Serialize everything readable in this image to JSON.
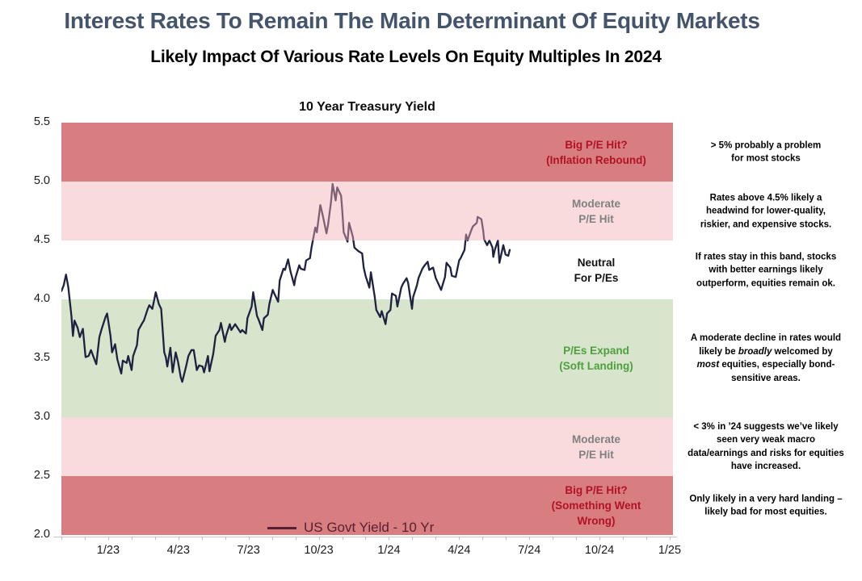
{
  "page": {
    "title": "Interest Rates To Remain The Main Determinant Of Equity Markets",
    "subtitle": "Likely Impact Of Various Rate Levels On Equity Multiples In 2024"
  },
  "chart_data": {
    "type": "line",
    "title": "10 Year Treasury Yield",
    "legend": "US Govt Yield - 10 Yr",
    "line_color": "#1e2240",
    "legend_color": "#571f31",
    "axis_color": "#bdbdbd",
    "ylim": [
      2.0,
      5.5
    ],
    "y_ticks": [
      5.5,
      5.0,
      4.5,
      4.0,
      3.5,
      3.0,
      2.5,
      2.0
    ],
    "x_ticks": [
      {
        "label": "1/23",
        "month": 2
      },
      {
        "label": "4/23",
        "month": 5
      },
      {
        "label": "7/23",
        "month": 8
      },
      {
        "label": "10/23",
        "month": 11
      },
      {
        "label": "1/24",
        "month": 14
      },
      {
        "label": "4/24",
        "month": 17
      },
      {
        "label": "7/24",
        "month": 20
      },
      {
        "label": "10/24",
        "month": 23
      },
      {
        "label": "1/25",
        "month": 26
      }
    ],
    "x_minor_tick_months": 26,
    "grid": false,
    "legend_position": "bottom-inside",
    "bands": [
      {
        "from": 5.0,
        "to": 5.5,
        "fill": "#d87e81",
        "layer": "under",
        "label": "Big P/E Hit?\n(Inflation Rebound)",
        "label_color": "#b01325"
      },
      {
        "from": 4.5,
        "to": 5.0,
        "fill": "rgba(243,176,179,0.45)",
        "layer": "over",
        "label": "Moderate\nP/E Hit",
        "label_color": "#808080"
      },
      {
        "from": 4.0,
        "to": 4.5,
        "fill": "#ffffff",
        "layer": "under",
        "label": "Neutral\nFor P/Es",
        "label_color": "#111111"
      },
      {
        "from": 3.0,
        "to": 4.0,
        "fill": "#d8e5cd",
        "layer": "under",
        "label": "P/Es Expand\n(Soft Landing)",
        "label_color": "#4f9f3f"
      },
      {
        "from": 2.5,
        "to": 3.0,
        "fill": "rgba(243,176,179,0.45)",
        "layer": "over",
        "label": "Moderate\nP/E Hit",
        "label_color": "#808080"
      },
      {
        "from": 2.0,
        "to": 2.5,
        "fill": "#d87e81",
        "layer": "under",
        "label": "Big P/E Hit?\n(Something Went\nWrong)",
        "label_color": "#b01325"
      }
    ],
    "annotations": [
      {
        "center_value": 5.25,
        "text": "> 5% probably a problem\nfor most stocks"
      },
      {
        "center_value": 4.75,
        "text": "Rates above 4.5% likely a\nheadwind for lower-quality,\nriskier, and expensive stocks."
      },
      {
        "center_value": 4.25,
        "text": "If rates stay in this band, stocks\nwith better earnings likely\noutperform, equities remain ok."
      },
      {
        "center_value": 3.5,
        "text": "A moderate decline in rates would\nlikely be *broadly* welcomed by\n*most* equities, especially bond-\nsensitive areas."
      },
      {
        "center_value": 2.75,
        "text": "< 3% in ’24 suggests we’ve likely\nseen very weak macro\ndata/earnings and risks for equities\nhave increased."
      },
      {
        "center_value": 2.25,
        "text": "Only likely in a very hard landing –\nlikely bad for most equities."
      }
    ],
    "series": [
      {
        "name": "US Govt Yield - 10 Yr",
        "points": [
          [
            "2022-11-01",
            4.07
          ],
          [
            "2022-11-04",
            4.12
          ],
          [
            "2022-11-07",
            4.21
          ],
          [
            "2022-11-09",
            4.14
          ],
          [
            "2022-11-10",
            4.1
          ],
          [
            "2022-11-14",
            3.86
          ],
          [
            "2022-11-16",
            3.69
          ],
          [
            "2022-11-18",
            3.82
          ],
          [
            "2022-11-22",
            3.76
          ],
          [
            "2022-11-25",
            3.68
          ],
          [
            "2022-11-29",
            3.75
          ],
          [
            "2022-12-02",
            3.51
          ],
          [
            "2022-12-06",
            3.52
          ],
          [
            "2022-12-09",
            3.57
          ],
          [
            "2022-12-13",
            3.5
          ],
          [
            "2022-12-16",
            3.45
          ],
          [
            "2022-12-20",
            3.68
          ],
          [
            "2022-12-23",
            3.75
          ],
          [
            "2022-12-28",
            3.85
          ],
          [
            "2022-12-30",
            3.88
          ],
          [
            "2023-01-04",
            3.69
          ],
          [
            "2023-01-06",
            3.55
          ],
          [
            "2023-01-10",
            3.62
          ],
          [
            "2023-01-13",
            3.49
          ],
          [
            "2023-01-18",
            3.37
          ],
          [
            "2023-01-20",
            3.48
          ],
          [
            "2023-01-25",
            3.46
          ],
          [
            "2023-01-27",
            3.52
          ],
          [
            "2023-02-01",
            3.4
          ],
          [
            "2023-02-03",
            3.52
          ],
          [
            "2023-02-08",
            3.61
          ],
          [
            "2023-02-10",
            3.74
          ],
          [
            "2023-02-15",
            3.8
          ],
          [
            "2023-02-17",
            3.82
          ],
          [
            "2023-02-22",
            3.92
          ],
          [
            "2023-02-24",
            3.95
          ],
          [
            "2023-02-28",
            3.92
          ],
          [
            "2023-03-02",
            4.06
          ],
          [
            "2023-03-06",
            3.96
          ],
          [
            "2023-03-09",
            3.92
          ],
          [
            "2023-03-13",
            3.55
          ],
          [
            "2023-03-15",
            3.51
          ],
          [
            "2023-03-17",
            3.43
          ],
          [
            "2023-03-21",
            3.59
          ],
          [
            "2023-03-24",
            3.38
          ],
          [
            "2023-03-28",
            3.55
          ],
          [
            "2023-03-31",
            3.47
          ],
          [
            "2023-04-04",
            3.34
          ],
          [
            "2023-04-06",
            3.3
          ],
          [
            "2023-04-11",
            3.43
          ],
          [
            "2023-04-14",
            3.52
          ],
          [
            "2023-04-18",
            3.57
          ],
          [
            "2023-04-21",
            3.57
          ],
          [
            "2023-04-25",
            3.4
          ],
          [
            "2023-04-28",
            3.44
          ],
          [
            "2023-05-02",
            3.43
          ],
          [
            "2023-05-04",
            3.38
          ],
          [
            "2023-05-09",
            3.52
          ],
          [
            "2023-05-11",
            3.39
          ],
          [
            "2023-05-16",
            3.54
          ],
          [
            "2023-05-19",
            3.69
          ],
          [
            "2023-05-24",
            3.74
          ],
          [
            "2023-05-26",
            3.8
          ],
          [
            "2023-05-31",
            3.64
          ],
          [
            "2023-06-02",
            3.69
          ],
          [
            "2023-06-07",
            3.79
          ],
          [
            "2023-06-09",
            3.74
          ],
          [
            "2023-06-14",
            3.79
          ],
          [
            "2023-06-16",
            3.77
          ],
          [
            "2023-06-21",
            3.72
          ],
          [
            "2023-06-23",
            3.74
          ],
          [
            "2023-06-28",
            3.71
          ],
          [
            "2023-06-30",
            3.84
          ],
          [
            "2023-07-05",
            3.94
          ],
          [
            "2023-07-07",
            4.06
          ],
          [
            "2023-07-12",
            3.86
          ],
          [
            "2023-07-14",
            3.83
          ],
          [
            "2023-07-19",
            3.74
          ],
          [
            "2023-07-21",
            3.84
          ],
          [
            "2023-07-26",
            3.87
          ],
          [
            "2023-07-28",
            3.96
          ],
          [
            "2023-08-02",
            4.08
          ],
          [
            "2023-08-04",
            4.05
          ],
          [
            "2023-08-09",
            3.98
          ],
          [
            "2023-08-11",
            4.16
          ],
          [
            "2023-08-16",
            4.26
          ],
          [
            "2023-08-18",
            4.25
          ],
          [
            "2023-08-22",
            4.34
          ],
          [
            "2023-08-25",
            4.24
          ],
          [
            "2023-08-30",
            4.12
          ],
          [
            "2023-09-01",
            4.18
          ],
          [
            "2023-09-06",
            4.29
          ],
          [
            "2023-09-08",
            4.26
          ],
          [
            "2023-09-13",
            4.25
          ],
          [
            "2023-09-15",
            4.33
          ],
          [
            "2023-09-20",
            4.35
          ],
          [
            "2023-09-22",
            4.44
          ],
          [
            "2023-09-27",
            4.61
          ],
          [
            "2023-09-29",
            4.57
          ],
          [
            "2023-10-03",
            4.8
          ],
          [
            "2023-10-06",
            4.72
          ],
          [
            "2023-10-11",
            4.56
          ],
          [
            "2023-10-13",
            4.63
          ],
          [
            "2023-10-17",
            4.83
          ],
          [
            "2023-10-19",
            4.98
          ],
          [
            "2023-10-23",
            4.84
          ],
          [
            "2023-10-25",
            4.95
          ],
          [
            "2023-10-30",
            4.88
          ],
          [
            "2023-11-01",
            4.77
          ],
          [
            "2023-11-03",
            4.57
          ],
          [
            "2023-11-08",
            4.49
          ],
          [
            "2023-11-10",
            4.65
          ],
          [
            "2023-11-15",
            4.53
          ],
          [
            "2023-11-17",
            4.44
          ],
          [
            "2023-11-22",
            4.41
          ],
          [
            "2023-11-27",
            4.39
          ],
          [
            "2023-11-29",
            4.27
          ],
          [
            "2023-12-01",
            4.2
          ],
          [
            "2023-12-06",
            4.1
          ],
          [
            "2023-12-08",
            4.23
          ],
          [
            "2023-12-13",
            4.02
          ],
          [
            "2023-12-15",
            3.91
          ],
          [
            "2023-12-20",
            3.85
          ],
          [
            "2023-12-22",
            3.9
          ],
          [
            "2023-12-27",
            3.79
          ],
          [
            "2023-12-29",
            3.88
          ],
          [
            "2024-01-03",
            3.91
          ],
          [
            "2024-01-05",
            4.05
          ],
          [
            "2024-01-10",
            4.03
          ],
          [
            "2024-01-12",
            3.94
          ],
          [
            "2024-01-17",
            4.1
          ],
          [
            "2024-01-19",
            4.13
          ],
          [
            "2024-01-24",
            4.18
          ],
          [
            "2024-01-26",
            4.14
          ],
          [
            "2024-01-31",
            3.92
          ],
          [
            "2024-02-02",
            4.02
          ],
          [
            "2024-02-07",
            4.12
          ],
          [
            "2024-02-09",
            4.18
          ],
          [
            "2024-02-14",
            4.26
          ],
          [
            "2024-02-16",
            4.28
          ],
          [
            "2024-02-21",
            4.32
          ],
          [
            "2024-02-23",
            4.25
          ],
          [
            "2024-02-28",
            4.27
          ],
          [
            "2024-03-01",
            4.18
          ],
          [
            "2024-03-06",
            4.11
          ],
          [
            "2024-03-08",
            4.08
          ],
          [
            "2024-03-13",
            4.19
          ],
          [
            "2024-03-15",
            4.31
          ],
          [
            "2024-03-20",
            4.27
          ],
          [
            "2024-03-22",
            4.2
          ],
          [
            "2024-03-27",
            4.19
          ],
          [
            "2024-04-01",
            4.33
          ],
          [
            "2024-04-03",
            4.35
          ],
          [
            "2024-04-08",
            4.42
          ],
          [
            "2024-04-10",
            4.55
          ],
          [
            "2024-04-12",
            4.5
          ],
          [
            "2024-04-17",
            4.59
          ],
          [
            "2024-04-19",
            4.62
          ],
          [
            "2024-04-24",
            4.65
          ],
          [
            "2024-04-25",
            4.7
          ],
          [
            "2024-04-30",
            4.68
          ],
          [
            "2024-05-02",
            4.58
          ],
          [
            "2024-05-03",
            4.51
          ],
          [
            "2024-05-07",
            4.46
          ],
          [
            "2024-05-10",
            4.5
          ],
          [
            "2024-05-14",
            4.44
          ],
          [
            "2024-05-15",
            4.36
          ],
          [
            "2024-05-17",
            4.42
          ],
          [
            "2024-05-21",
            4.5
          ],
          [
            "2024-05-23",
            4.31
          ],
          [
            "2024-05-28",
            4.46
          ],
          [
            "2024-05-31",
            4.38
          ],
          [
            "2024-06-04",
            4.37
          ],
          [
            "2024-06-06",
            4.42
          ]
        ]
      }
    ]
  }
}
